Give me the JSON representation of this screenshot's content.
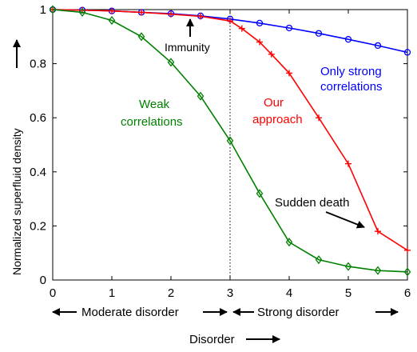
{
  "chart_data": {
    "type": "line",
    "xlabel": "Disorder",
    "ylabel": "Normalized superfluid density",
    "xlim": [
      0,
      6
    ],
    "ylim": [
      0,
      1
    ],
    "x_ticks": [
      "0",
      "1",
      "2",
      "3",
      "4",
      "5",
      "6"
    ],
    "y_ticks": [
      "0",
      "0.2",
      "0.4",
      "0.6",
      "0.8",
      "1"
    ],
    "grid": false,
    "divider_x": 3,
    "series": [
      {
        "name": "Only strong correlations",
        "color": "#0000ff",
        "marker": "circle",
        "x": [
          0,
          0.5,
          1,
          1.5,
          2,
          2.5,
          3,
          3.5,
          4,
          4.5,
          5,
          5.5,
          6
        ],
        "y": [
          1.0,
          0.998,
          0.995,
          0.99,
          0.985,
          0.977,
          0.965,
          0.95,
          0.932,
          0.912,
          0.89,
          0.867,
          0.842
        ]
      },
      {
        "name": "Our approach",
        "color": "#ff0000",
        "marker": "plus",
        "x": [
          0,
          0.5,
          1,
          1.5,
          2,
          2.5,
          3,
          3.2,
          3.5,
          3.7,
          4,
          4.5,
          5,
          5.5,
          6
        ],
        "y": [
          1.0,
          0.998,
          0.995,
          0.99,
          0.983,
          0.975,
          0.958,
          0.93,
          0.88,
          0.835,
          0.765,
          0.6,
          0.43,
          0.18,
          0.11
        ]
      },
      {
        "name": "Weak correlations",
        "color": "#008000",
        "marker": "diamond",
        "x": [
          0,
          0.5,
          1,
          1.5,
          2,
          2.5,
          3,
          3.5,
          4,
          4.5,
          5,
          5.5,
          6
        ],
        "y": [
          1.0,
          0.99,
          0.96,
          0.9,
          0.805,
          0.68,
          0.515,
          0.32,
          0.14,
          0.075,
          0.05,
          0.035,
          0.03
        ]
      }
    ],
    "annotations": {
      "immunity": "Immunity",
      "only_strong_line1": "Only strong",
      "only_strong_line2": "correlations",
      "our_line1": "Our",
      "our_line2": "approach",
      "weak_line1": "Weak",
      "weak_line2": "correlations",
      "sudden_death": "Sudden death",
      "moderate_disorder": "Moderate disorder",
      "strong_disorder": "Strong disorder"
    }
  }
}
